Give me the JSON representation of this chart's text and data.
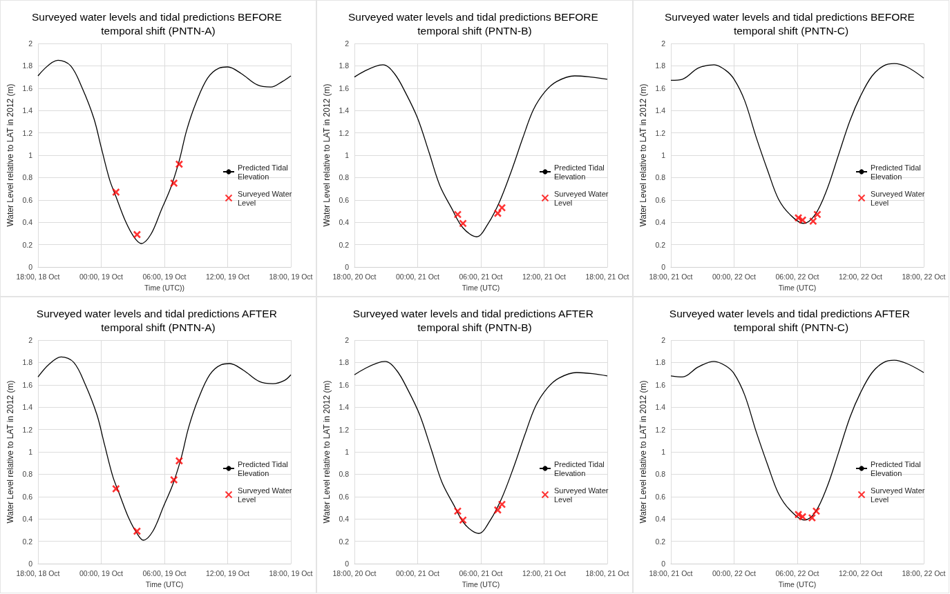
{
  "chart_data": [
    {
      "type": "line",
      "title": "Surveyed water levels and tidal predictions BEFORE temporal shift (PNTN-A)",
      "xlabel": "Time (UTC))",
      "ylabel": "Water Level relative to LAT in 2012 (m)",
      "xlim": [
        "--10-18T18:00",
        "--10-19T18:00"
      ],
      "xticks": [
        {
          "value": "--10-18T18:00",
          "label": "18:00, 18 Oct"
        },
        {
          "value": "--10-19T00:00",
          "label": "00:00, 19 Oct"
        },
        {
          "value": "--10-19T06:00",
          "label": "06:00, 19 Oct"
        },
        {
          "value": "--10-19T12:00",
          "label": "12:00, 19 Oct"
        },
        {
          "value": "--10-19T18:00",
          "label": "18:00, 19 Oct"
        }
      ],
      "ylim": [
        0,
        2
      ],
      "yticks": [
        0,
        0.2,
        0.4,
        0.6,
        0.8,
        1,
        1.2,
        1.4,
        1.6,
        1.8,
        2
      ],
      "grid": true,
      "legend": "right",
      "series": [
        {
          "name": "Predicted Tidal Elevation",
          "color": "#000000",
          "marker": "none",
          "x": [
            "--10-18T18:00",
            "--10-18T19:54",
            "--10-18T21:06",
            "--10-18T22:12",
            "--10-18T23:18",
            "--10-19T00:00",
            "--10-19T00:48",
            "--10-19T01:24",
            "--10-19T02:18",
            "--10-19T03:06",
            "--10-19T03:48",
            "--10-19T04:42",
            "--10-19T05:42",
            "--10-19T06:36",
            "--10-19T07:24",
            "--10-19T08:06",
            "--10-19T09:00",
            "--10-19T10:06",
            "--10-19T11:12",
            "--10-19T12:00",
            "--10-19T13:18",
            "--10-19T14:48",
            "--10-19T16:06",
            "--10-19T17:12",
            "--10-19T18:00"
          ],
          "values": [
            1.71,
            1.85,
            1.8,
            1.6,
            1.33,
            1.07,
            0.78,
            0.63,
            0.41,
            0.27,
            0.21,
            0.29,
            0.51,
            0.71,
            0.95,
            1.22,
            1.47,
            1.69,
            1.78,
            1.79,
            1.73,
            1.63,
            1.61,
            1.66,
            1.71
          ]
        },
        {
          "name": "Surveyed Water Level",
          "type": "scatter",
          "color": "#ff0000",
          "marker": "cross",
          "x": [
            "--10-19T01:24",
            "--10-19T03:24",
            "--10-19T06:54",
            "--10-19T07:24"
          ],
          "values": [
            0.67,
            0.29,
            0.75,
            0.92
          ]
        }
      ]
    },
    {
      "type": "line",
      "title": "Surveyed water levels and tidal predictions BEFORE temporal shift (PNTN-B)",
      "xlabel": "Time (UTC)",
      "ylabel": "Water Level relative to LAT in 2012 (m)",
      "xlim": [
        "--10-20T18:00",
        "--10-21T18:00"
      ],
      "xticks": [
        {
          "value": "--10-20T18:00",
          "label": "18:00, 20 Oct"
        },
        {
          "value": "--10-21T00:00",
          "label": "00:00, 21 Oct"
        },
        {
          "value": "--10-21T06:00",
          "label": "06:00, 21 Oct"
        },
        {
          "value": "--10-21T12:00",
          "label": "12:00, 21 Oct"
        },
        {
          "value": "--10-21T18:00",
          "label": "18:00, 21 Oct"
        }
      ],
      "ylim": [
        0,
        2
      ],
      "yticks": [
        0,
        0.2,
        0.4,
        0.6,
        0.8,
        1,
        1.2,
        1.4,
        1.6,
        1.8,
        2
      ],
      "grid": true,
      "legend": "right",
      "series": [
        {
          "name": "Predicted Tidal Elevation",
          "color": "#000000",
          "marker": "none",
          "x": [
            "--10-20T18:00",
            "--10-20T20:42",
            "--10-20T21:48",
            "--10-20T22:54",
            "--10-21T00:00",
            "--10-21T01:06",
            "--10-21T02:06",
            "--10-21T03:12",
            "--10-21T04:18",
            "--10-21T05:36",
            "--10-21T06:42",
            "--10-21T07:48",
            "--10-21T08:54",
            "--10-21T10:00",
            "--10-21T11:00",
            "--10-21T12:06",
            "--10-21T13:12",
            "--10-21T14:54",
            "--10-21T16:24",
            "--10-21T18:00"
          ],
          "values": [
            1.7,
            1.81,
            1.73,
            1.55,
            1.33,
            1.02,
            0.73,
            0.53,
            0.35,
            0.27,
            0.39,
            0.59,
            0.86,
            1.16,
            1.41,
            1.57,
            1.66,
            1.71,
            1.7,
            1.68
          ]
        },
        {
          "name": "Surveyed Water Level",
          "type": "scatter",
          "color": "#ff0000",
          "marker": "cross",
          "x": [
            "--10-21T03:48",
            "--10-21T04:18",
            "--10-21T07:36",
            "--10-21T08:00"
          ],
          "values": [
            0.47,
            0.39,
            0.48,
            0.53
          ]
        }
      ]
    },
    {
      "type": "line",
      "title": "Surveyed water levels and tidal predictions BEFORE temporal shift (PNTN-C)",
      "xlabel": "Time (UTC)",
      "ylabel": "Water Level relative to LAT in 2012 (m)",
      "xlim": [
        "--10-21T18:00",
        "--10-22T18:00"
      ],
      "xticks": [
        {
          "value": "--10-21T18:00",
          "label": "18:00, 21 Oct"
        },
        {
          "value": "--10-22T00:00",
          "label": "00:00, 22 Oct"
        },
        {
          "value": "--10-22T06:00",
          "label": "06:00, 22 Oct"
        },
        {
          "value": "--10-22T12:00",
          "label": "12:00, 22 Oct"
        },
        {
          "value": "--10-22T18:00",
          "label": "18:00, 22 Oct"
        }
      ],
      "ylim": [
        0,
        2
      ],
      "yticks": [
        0,
        0.2,
        0.4,
        0.6,
        0.8,
        1,
        1.2,
        1.4,
        1.6,
        1.8,
        2
      ],
      "grid": true,
      "legend": "right",
      "series": [
        {
          "name": "Predicted Tidal Elevation",
          "color": "#000000",
          "marker": "none",
          "x": [
            "--10-21T18:00",
            "--10-21T19:06",
            "--10-21T20:36",
            "--10-21T22:06",
            "--10-21T23:12",
            "--10-22T00:00",
            "--10-22T01:00",
            "--10-22T02:06",
            "--10-22T03:12",
            "--10-22T04:12",
            "--10-22T05:18",
            "--10-22T06:36",
            "--10-22T07:42",
            "--10-22T08:48",
            "--10-22T09:54",
            "--10-22T11:00",
            "--10-22T12:00",
            "--10-22T13:06",
            "--10-22T14:12",
            "--10-22T15:12",
            "--10-22T16:24",
            "--10-22T18:00"
          ],
          "values": [
            1.67,
            1.68,
            1.78,
            1.81,
            1.76,
            1.68,
            1.49,
            1.16,
            0.86,
            0.61,
            0.47,
            0.39,
            0.47,
            0.69,
            1,
            1.31,
            1.53,
            1.71,
            1.8,
            1.82,
            1.79,
            1.69
          ]
        },
        {
          "name": "Surveyed Water Level",
          "type": "scatter",
          "color": "#ff0000",
          "marker": "cross",
          "x": [
            "--10-22T06:06",
            "--10-22T06:30",
            "--10-22T07:30",
            "--10-22T07:54"
          ],
          "values": [
            0.44,
            0.42,
            0.41,
            0.47
          ]
        }
      ]
    },
    {
      "type": "line",
      "title": "Surveyed water levels and tidal predictions AFTER temporal shift (PNTN-A)",
      "xlabel": "Time (UTC)",
      "ylabel": "Water Level relative to LAT in 2012 (m)",
      "xlim": [
        "--10-18T18:00",
        "--10-19T18:00"
      ],
      "xticks": [
        {
          "value": "--10-18T18:00",
          "label": "18:00, 18 Oct"
        },
        {
          "value": "--10-19T00:00",
          "label": "00:00, 19 Oct"
        },
        {
          "value": "--10-19T06:00",
          "label": "06:00, 19 Oct"
        },
        {
          "value": "--10-19T12:00",
          "label": "12:00, 19 Oct"
        },
        {
          "value": "--10-19T18:00",
          "label": "18:00, 19 Oct"
        }
      ],
      "ylim": [
        0,
        2
      ],
      "yticks": [
        0,
        0.2,
        0.4,
        0.6,
        0.8,
        1,
        1.2,
        1.4,
        1.6,
        1.8,
        2
      ],
      "grid": true,
      "legend": "right",
      "series": [
        {
          "name": "Predicted Tidal Elevation",
          "color": "#000000",
          "marker": "none",
          "x": [
            "--10-18T18:00",
            "--10-18T19:00",
            "--10-18T20:12",
            "--10-18T21:24",
            "--10-18T22:30",
            "--10-18T23:36",
            "--10-19T00:18",
            "--10-19T01:06",
            "--10-19T01:42",
            "--10-19T02:36",
            "--10-19T03:24",
            "--10-19T04:00",
            "--10-19T04:54",
            "--10-19T05:54",
            "--10-19T06:48",
            "--10-19T07:36",
            "--10-19T08:18",
            "--10-19T09:12",
            "--10-19T10:18",
            "--10-19T11:24",
            "--10-19T12:12",
            "--10-19T13:30",
            "--10-19T15:00",
            "--10-19T16:18",
            "--10-19T17:24",
            "--10-19T18:00"
          ],
          "values": [
            1.67,
            1.78,
            1.85,
            1.8,
            1.6,
            1.33,
            1.07,
            0.78,
            0.63,
            0.41,
            0.27,
            0.21,
            0.29,
            0.51,
            0.71,
            0.95,
            1.22,
            1.47,
            1.69,
            1.78,
            1.79,
            1.73,
            1.63,
            1.61,
            1.64,
            1.69
          ]
        },
        {
          "name": "Surveyed Water Level",
          "type": "scatter",
          "color": "#ff0000",
          "marker": "cross",
          "x": [
            "--10-19T01:24",
            "--10-19T03:24",
            "--10-19T06:54",
            "--10-19T07:24"
          ],
          "values": [
            0.67,
            0.29,
            0.75,
            0.92
          ]
        }
      ]
    },
    {
      "type": "line",
      "title": "Surveyed water levels and tidal predictions AFTER temporal shift (PNTN-B)",
      "xlabel": "Time (UTC)",
      "ylabel": "Water Level relative to LAT in 2012 (m)",
      "xlim": [
        "--10-20T18:00",
        "--10-21T18:00"
      ],
      "xticks": [
        {
          "value": "--10-20T18:00",
          "label": "18:00, 20 Oct"
        },
        {
          "value": "--10-21T00:00",
          "label": "00:00, 21 Oct"
        },
        {
          "value": "--10-21T06:00",
          "label": "06:00, 21 Oct"
        },
        {
          "value": "--10-21T12:00",
          "label": "12:00, 21 Oct"
        },
        {
          "value": "--10-21T18:00",
          "label": "18:00, 21 Oct"
        }
      ],
      "ylim": [
        0,
        2
      ],
      "yticks": [
        0,
        0.2,
        0.4,
        0.6,
        0.8,
        1,
        1.2,
        1.4,
        1.6,
        1.8,
        2
      ],
      "grid": true,
      "legend": "right",
      "series": [
        {
          "name": "Predicted Tidal Elevation",
          "color": "#000000",
          "marker": "none",
          "x": [
            "--10-20T18:00",
            "--10-20T20:54",
            "--10-20T22:00",
            "--10-20T23:06",
            "--10-21T00:12",
            "--10-21T01:18",
            "--10-21T02:18",
            "--10-21T03:24",
            "--10-21T04:30",
            "--10-21T05:48",
            "--10-21T06:54",
            "--10-21T08:00",
            "--10-21T09:06",
            "--10-21T10:12",
            "--10-21T11:12",
            "--10-21T12:18",
            "--10-21T13:24",
            "--10-21T15:06",
            "--10-21T16:36",
            "--10-21T18:00"
          ],
          "values": [
            1.69,
            1.81,
            1.73,
            1.55,
            1.33,
            1.02,
            0.73,
            0.53,
            0.35,
            0.27,
            0.39,
            0.59,
            0.86,
            1.16,
            1.41,
            1.57,
            1.66,
            1.71,
            1.7,
            1.68
          ]
        },
        {
          "name": "Surveyed Water Level",
          "type": "scatter",
          "color": "#ff0000",
          "marker": "cross",
          "x": [
            "--10-21T03:48",
            "--10-21T04:18",
            "--10-21T07:36",
            "--10-21T08:00"
          ],
          "values": [
            0.47,
            0.39,
            0.48,
            0.53
          ]
        }
      ]
    },
    {
      "type": "line",
      "title": "Surveyed water levels and tidal predictions AFTER temporal shift (PNTN-C)",
      "xlabel": "Time (UTC)",
      "ylabel": "Water Level relative to LAT in 2012 (m)",
      "xlim": [
        "--10-21T18:00",
        "--10-22T18:00"
      ],
      "xticks": [
        {
          "value": "--10-21T18:00",
          "label": "18:00, 21 Oct"
        },
        {
          "value": "--10-22T00:00",
          "label": "00:00, 22 Oct"
        },
        {
          "value": "--10-22T06:00",
          "label": "06:00, 22 Oct"
        },
        {
          "value": "--10-22T12:00",
          "label": "12:00, 22 Oct"
        },
        {
          "value": "--10-22T18:00",
          "label": "18:00, 22 Oct"
        }
      ],
      "ylim": [
        0,
        2
      ],
      "yticks": [
        0,
        0.2,
        0.4,
        0.6,
        0.8,
        1,
        1.2,
        1.4,
        1.6,
        1.8,
        2
      ],
      "grid": true,
      "legend": "right",
      "series": [
        {
          "name": "Predicted Tidal Elevation",
          "color": "#000000",
          "marker": "none",
          "x": [
            "--10-21T18:00",
            "--10-21T19:06",
            "--10-21T20:36",
            "--10-21T22:06",
            "--10-21T23:12",
            "--10-22T00:00",
            "--10-22T01:00",
            "--10-22T02:06",
            "--10-22T03:12",
            "--10-22T04:12",
            "--10-22T05:18",
            "--10-22T06:42",
            "--10-22T07:42",
            "--10-22T08:48",
            "--10-22T09:54",
            "--10-22T11:00",
            "--10-22T12:00",
            "--10-22T13:06",
            "--10-22T14:12",
            "--10-22T15:12",
            "--10-22T16:24",
            "--10-22T18:00"
          ],
          "values": [
            1.68,
            1.67,
            1.76,
            1.81,
            1.77,
            1.7,
            1.51,
            1.18,
            0.88,
            0.63,
            0.48,
            0.39,
            0.46,
            0.68,
            0.99,
            1.31,
            1.53,
            1.71,
            1.8,
            1.82,
            1.79,
            1.71
          ]
        },
        {
          "name": "Surveyed Water Level",
          "type": "scatter",
          "color": "#ff0000",
          "marker": "cross",
          "x": [
            "--10-22T06:06",
            "--10-22T06:30",
            "--10-22T07:24",
            "--10-22T07:48"
          ],
          "values": [
            0.44,
            0.42,
            0.41,
            0.47
          ]
        }
      ]
    }
  ]
}
